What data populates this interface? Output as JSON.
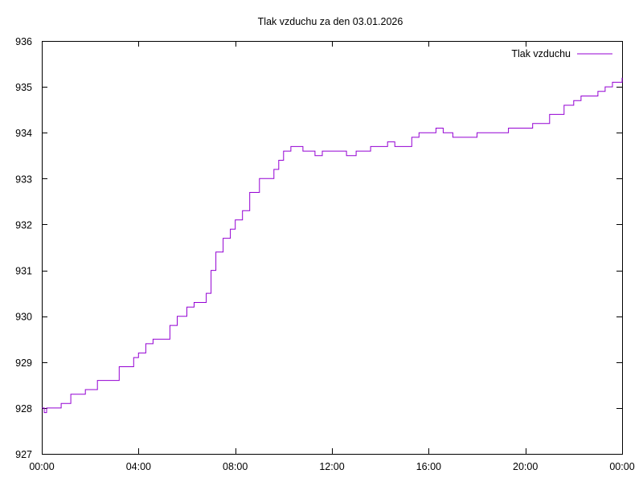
{
  "chart_data": {
    "type": "line",
    "title": "Tlak vzduchu za den 03.01.2026",
    "xlabel": "",
    "ylabel": "",
    "xlim": [
      "00:00",
      "24:00"
    ],
    "ylim": [
      927,
      936
    ],
    "x_ticks": [
      "00:00",
      "04:00",
      "08:00",
      "12:00",
      "16:00",
      "20:00",
      "00:00"
    ],
    "y_ticks": [
      "927",
      "928",
      "929",
      "930",
      "931",
      "932",
      "933",
      "934",
      "935",
      "936"
    ],
    "grid": false,
    "legend_position": "top-right",
    "series": [
      {
        "name": "Tlak vzduchu",
        "color": "#9400d3",
        "x": [
          0.0,
          0.1,
          0.2,
          0.3,
          0.5,
          0.8,
          1.0,
          1.2,
          1.5,
          1.8,
          2.0,
          2.3,
          2.6,
          3.0,
          3.2,
          3.5,
          3.8,
          4.0,
          4.3,
          4.6,
          5.0,
          5.3,
          5.6,
          6.0,
          6.3,
          6.6,
          6.8,
          7.0,
          7.2,
          7.5,
          7.8,
          8.0,
          8.3,
          8.6,
          9.0,
          9.3,
          9.6,
          9.8,
          10.0,
          10.3,
          10.5,
          10.8,
          11.0,
          11.3,
          11.6,
          12.0,
          12.3,
          12.6,
          13.0,
          13.3,
          13.6,
          14.0,
          14.3,
          14.6,
          15.0,
          15.3,
          15.6,
          16.0,
          16.3,
          16.6,
          17.0,
          17.3,
          17.6,
          18.0,
          18.3,
          18.6,
          19.0,
          19.3,
          19.6,
          20.0,
          20.3,
          20.6,
          21.0,
          21.3,
          21.6,
          22.0,
          22.3,
          22.6,
          23.0,
          23.3,
          23.6,
          24.0
        ],
        "values": [
          928.0,
          927.9,
          928.0,
          928.0,
          928.0,
          928.1,
          928.1,
          928.3,
          928.3,
          928.4,
          928.4,
          928.6,
          928.6,
          928.6,
          928.9,
          928.9,
          929.1,
          929.2,
          929.4,
          929.5,
          929.5,
          929.8,
          930.0,
          930.2,
          930.3,
          930.3,
          930.5,
          931.0,
          931.4,
          931.7,
          931.9,
          932.1,
          932.3,
          932.7,
          933.0,
          933.0,
          933.2,
          933.4,
          933.6,
          933.7,
          933.7,
          933.6,
          933.6,
          933.5,
          933.6,
          933.6,
          933.6,
          933.5,
          933.6,
          933.6,
          933.7,
          933.7,
          933.8,
          933.7,
          933.7,
          933.9,
          934.0,
          934.0,
          934.1,
          934.0,
          933.9,
          933.9,
          933.9,
          934.0,
          934.0,
          934.0,
          934.0,
          934.1,
          934.1,
          934.1,
          934.2,
          934.2,
          934.4,
          934.4,
          934.6,
          934.7,
          934.8,
          934.8,
          934.9,
          935.0,
          935.1,
          935.2
        ]
      }
    ]
  }
}
